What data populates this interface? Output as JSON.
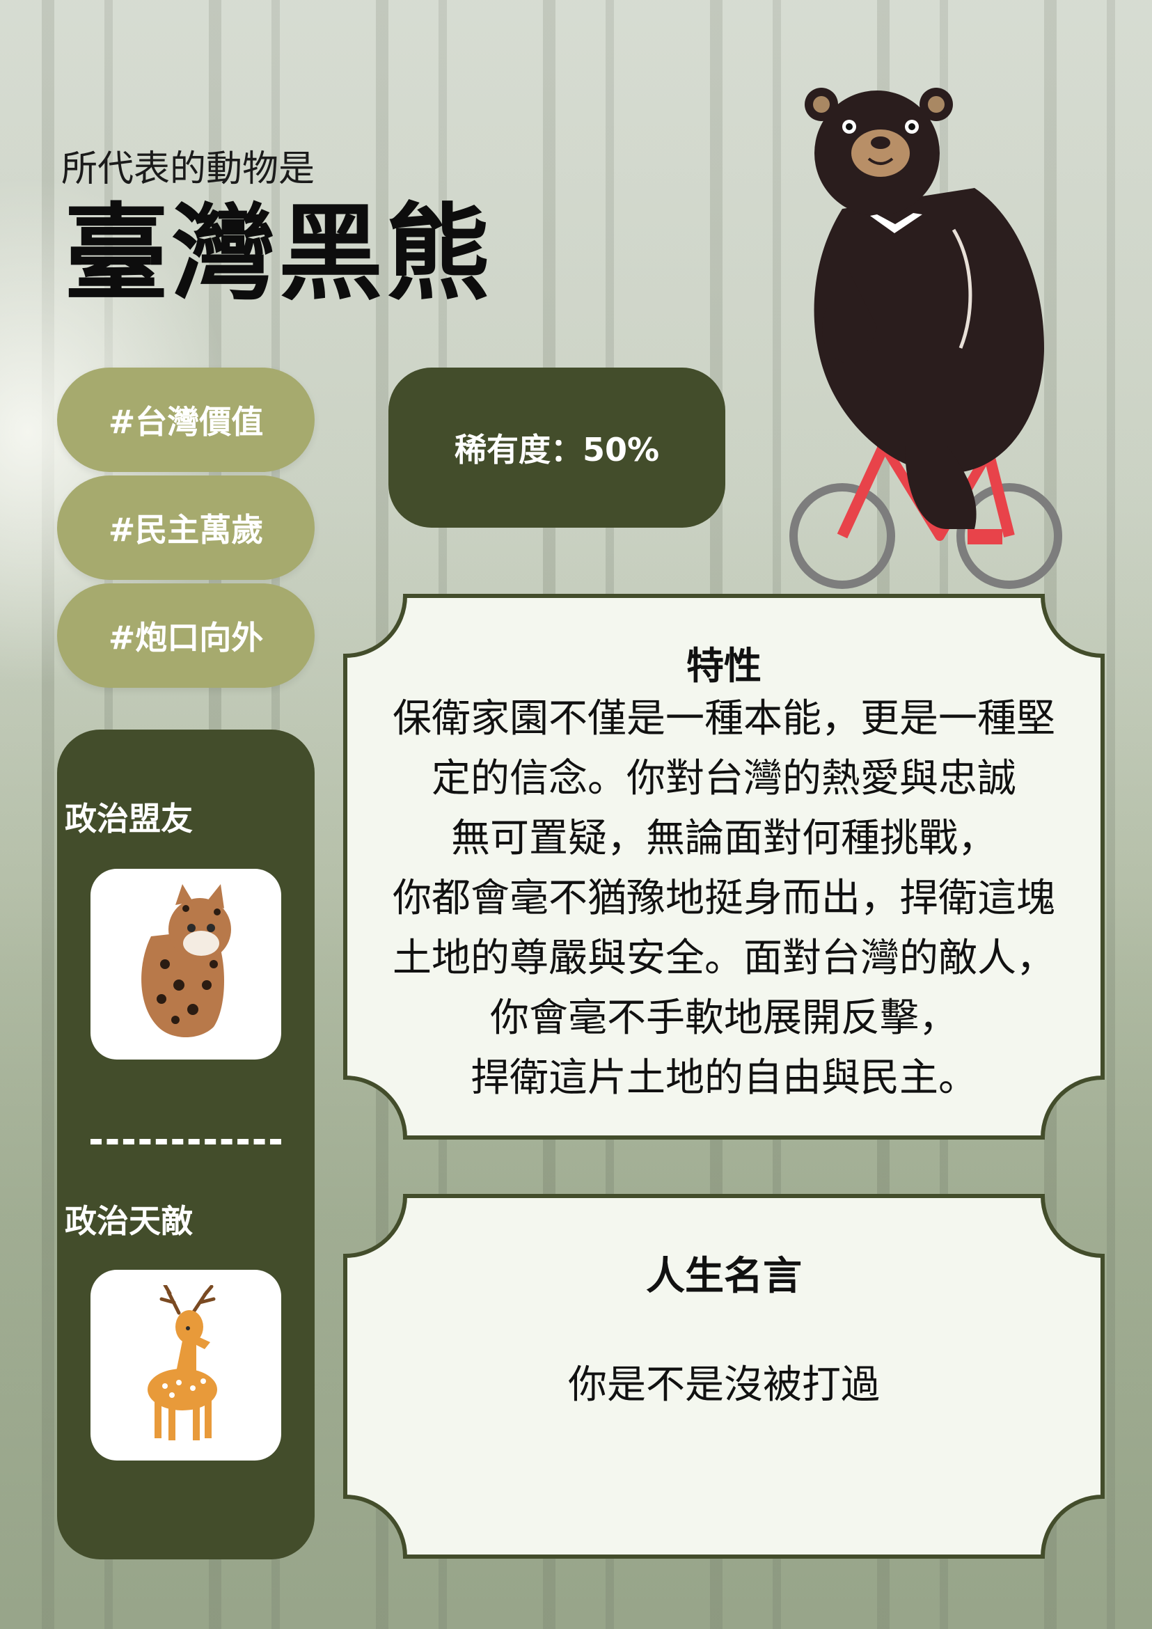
{
  "header": {
    "subtitle": "所代表的動物是",
    "title": "臺灣黑熊"
  },
  "tags": [
    "#台灣價值",
    "#民主萬歲",
    "#炮口向外"
  ],
  "rarity": {
    "label": "稀有度：50%",
    "value_percent": 50
  },
  "allies": {
    "heading": "政治盟友",
    "image_icon": "leopard-cat-icon"
  },
  "enemies": {
    "heading": "政治天敵",
    "image_icon": "sika-deer-icon"
  },
  "traits": {
    "heading": "特性",
    "lines": [
      "保衛家園不僅是一種本能，更是一種堅",
      "定的信念。你對台灣的熱愛與忠誠",
      "無可置疑，無論面對何種挑戰，",
      "你都會毫不猶豫地挺身而出，捍衛這塊",
      "土地的尊嚴與安全。面對台灣的敵人，",
      "你會毫不手軟地展開反擊，",
      "捍衛這片土地的自由與民主。"
    ]
  },
  "motto": {
    "heading": "人生名言",
    "text": "你是不是沒被打過"
  },
  "colors": {
    "dark_green": "#434d2b",
    "olive": "#a6aa6e",
    "panel_fill": "#f4f7ef",
    "panel_border": "#434d2b"
  },
  "illustration": {
    "main_icon": "bear-on-bicycle-icon"
  }
}
